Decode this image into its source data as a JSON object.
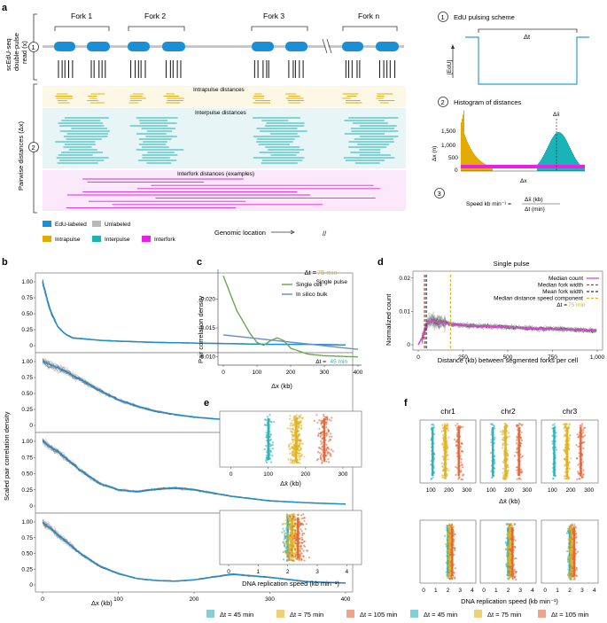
{
  "panels": {
    "a": "a",
    "b": "b",
    "c": "c",
    "d": "d",
    "e": "e",
    "f": "f"
  },
  "panel_a": {
    "forks": [
      "Fork 1",
      "Fork 2",
      "Fork 3",
      "Fork n"
    ],
    "ylabel_top": [
      "scEdU-seq",
      "double-pulse",
      "read (x)"
    ],
    "ylabel_bottom": "Pairwise distances (Δx)",
    "circle_labels": [
      "1",
      "2",
      "3"
    ],
    "band_labels": {
      "intra": "Intrapulse distances",
      "inter": "Interpulse distances",
      "interfork": "Interfork distances (examples)"
    },
    "legend": [
      "EdU-labeled",
      "Unlabeled",
      "Intrapulse",
      "Interpulse",
      "Interfork"
    ],
    "xlabel": "Genomic location",
    "right": {
      "pulse_title": "EdU pulsing scheme",
      "pulse_dt": "Δt",
      "pulse_ylabel": "[EdU]",
      "hist_title": "Histogram of distances",
      "hist_ylabel": "Δx (n)",
      "hist_xlabel": "Δx",
      "hist_mean": "Δx̄",
      "hist_ticks": [
        "1,000",
        "500",
        "0"
      ],
      "hist_ticks_top": "1,500",
      "speed_label": "Speed kb min⁻¹ =",
      "speed_num": "Δx̄ (kb)",
      "speed_den": "Δt (min)"
    }
  },
  "colors": {
    "edu": "#1b8fd6",
    "unlabeled": "#b8b8b8",
    "intra": "#e3aa00",
    "inter": "#1ab3b8",
    "interfork": "#ea1ee5",
    "median": "#e43fd8",
    "y45": "#2bb3bc",
    "y75": "#e3b11c",
    "y105": "#e2673c"
  },
  "panel_b": {
    "titles": [
      "Single pulse",
      "Δt = ",
      "Δt = ",
      "Δt = "
    ],
    "dt_values": [
      "45 min",
      "75 min",
      "105 min"
    ],
    "ylabel": "Scaled pair correlation density",
    "xlabel": "Δx (kb)",
    "yticks": [
      "0",
      "0.25",
      "0.50",
      "0.75",
      "1.00"
    ],
    "xticks": [
      "0",
      "100",
      "200",
      "300",
      "400"
    ]
  },
  "chart_data": [
    {
      "type": "line",
      "title": "Single pulse",
      "x": [
        0,
        10,
        20,
        30,
        40,
        60,
        80,
        100,
        150,
        200,
        250,
        300,
        350,
        400
      ],
      "y": [
        1.0,
        0.55,
        0.3,
        0.18,
        0.12,
        0.1,
        0.08,
        0.07,
        0.05,
        0.04,
        0.03,
        0.02,
        0.02,
        0.01
      ],
      "xlim": [
        0,
        400
      ],
      "ylim": [
        0,
        1
      ]
    },
    {
      "type": "line",
      "title": "Δt = 45 min",
      "x": [
        0,
        25,
        50,
        75,
        100,
        125,
        150,
        175,
        200,
        250,
        300,
        350,
        400
      ],
      "y": [
        1.0,
        0.88,
        0.72,
        0.55,
        0.4,
        0.3,
        0.22,
        0.17,
        0.13,
        0.08,
        0.05,
        0.03,
        0.02
      ],
      "xlim": [
        0,
        400
      ],
      "ylim": [
        0,
        1
      ]
    },
    {
      "type": "line",
      "title": "Δt = 75 min",
      "x": [
        0,
        25,
        50,
        75,
        100,
        125,
        150,
        175,
        200,
        250,
        300,
        350,
        400
      ],
      "y": [
        1.0,
        0.8,
        0.55,
        0.35,
        0.25,
        0.22,
        0.26,
        0.28,
        0.25,
        0.15,
        0.08,
        0.05,
        0.03
      ],
      "xlim": [
        0,
        400
      ],
      "ylim": [
        0,
        1
      ]
    },
    {
      "type": "line",
      "title": "Δt = 105 min",
      "x": [
        0,
        25,
        50,
        75,
        100,
        125,
        150,
        175,
        200,
        250,
        300,
        350,
        400
      ],
      "y": [
        1.0,
        0.75,
        0.5,
        0.3,
        0.18,
        0.1,
        0.07,
        0.06,
        0.08,
        0.17,
        0.12,
        0.05,
        0.03
      ],
      "xlim": [
        0,
        400
      ],
      "ylim": [
        0,
        1
      ]
    },
    {
      "type": "line",
      "title": "Δt = 75 min",
      "xlabel": "Δx (kb)",
      "ylabel": "Pair correlation density",
      "xlim": [
        0,
        400
      ],
      "ylim": [
        0.009,
        0.025
      ],
      "series": [
        {
          "name": "Single cell",
          "x": [
            0,
            20,
            40,
            60,
            80,
            100,
            120,
            140,
            160,
            180,
            200,
            250,
            300,
            350,
            400
          ],
          "y": [
            0.024,
            0.021,
            0.018,
            0.016,
            0.014,
            0.0125,
            0.012,
            0.0128,
            0.0133,
            0.0128,
            0.0115,
            0.0105,
            0.0102,
            0.0101,
            0.01
          ]
        },
        {
          "name": "In silico bulk",
          "x": [
            0,
            400
          ],
          "y": [
            0.0138,
            0.0113
          ]
        }
      ]
    },
    {
      "type": "line",
      "title": "Single pulse",
      "xlabel": "Distance (kb) between segmented forks per cell",
      "ylabel": "Normalized count",
      "xlim": [
        0,
        1000
      ],
      "ylim": [
        0,
        0.021
      ],
      "series": [
        {
          "name": "Median count",
          "x": [
            0,
            30,
            50,
            80,
            100,
            150,
            200,
            300,
            400,
            500,
            600,
            700,
            800,
            900,
            1000
          ],
          "y": [
            0,
            0.003,
            0.0068,
            0.0072,
            0.0068,
            0.0065,
            0.006,
            0.0057,
            0.0055,
            0.0053,
            0.005,
            0.0048,
            0.0047,
            0.0045,
            0.0042
          ]
        }
      ],
      "markers": [
        {
          "name": "Median fork width",
          "x": 35
        },
        {
          "name": "Mean fork width",
          "x": 45
        },
        {
          "name": "Median distance speed component",
          "x": 180
        }
      ],
      "yticks": [
        "0",
        "0.01",
        "0.02"
      ],
      "xticks": [
        "0",
        "250",
        "500",
        "750",
        "1,000"
      ]
    },
    {
      "type": "scatter",
      "xlabel": "Δx̄ (kb)",
      "xticks": [
        "0",
        "100",
        "200",
        "300"
      ],
      "series": [
        {
          "name": "Δt = 45 min",
          "center": 100
        },
        {
          "name": "Δt = 75 min",
          "center": 175
        },
        {
          "name": "Δt = 105 min",
          "center": 250
        }
      ]
    },
    {
      "type": "scatter",
      "xlabel": "DNA replication speed (kb min⁻¹)",
      "xticks": [
        "0",
        "1",
        "2",
        "3",
        "4"
      ],
      "series": [
        {
          "name": "Δt = 45 min",
          "center": 2.0
        },
        {
          "name": "Δt = 75 min",
          "center": 2.15
        },
        {
          "name": "Δt = 105 min",
          "center": 2.35
        }
      ]
    },
    {
      "type": "scatter",
      "titles": [
        "chr1",
        "chr2",
        "chr3"
      ],
      "xlabel": "Δx̄ (kb)",
      "xticks": [
        "100",
        "200",
        "300"
      ],
      "xlabel2": "DNA replication speed (kb min⁻¹)",
      "xticks2": [
        "0",
        "1",
        "2",
        "3",
        "4"
      ]
    }
  ],
  "panel_c": {
    "title_prefix": "Δt = ",
    "title_value": "75 min",
    "legend": [
      "Single cell",
      "In silico bulk"
    ],
    "yticks": [
      "0.010",
      "0.015",
      "0.020"
    ],
    "xticks": [
      "0",
      "100",
      "200",
      "300",
      "400"
    ],
    "ylabel": "Pair correlation density",
    "xlabel": "Δx (kb)"
  },
  "panel_d": {
    "title": "Single pulse",
    "legend": [
      "Median count",
      "Median fork width",
      "Mean fork width",
      "Median distance speed component",
      "Δt = "
    ],
    "legend_dt": "75 min",
    "ylabel": "Normalized count",
    "xlabel": "Distance (kb) between segmented forks per cell",
    "yticks": [
      "0",
      "0.01",
      "0.02"
    ],
    "xticks": [
      "0",
      "250",
      "500",
      "750",
      "1,000"
    ]
  },
  "panel_e": {
    "xlabel1": "Δx̄ (kb)",
    "xticks1": [
      "0",
      "100",
      "200",
      "300"
    ],
    "xlabel2": "DNA replication speed (kb min⁻¹)",
    "xticks2": [
      "0",
      "1",
      "2",
      "3",
      "4"
    ]
  },
  "panel_f": {
    "titles": [
      "chr1",
      "chr2",
      "chr3"
    ],
    "xticks1": [
      "100",
      "200",
      "300"
    ],
    "xlabel1": "Δx̄ (kb)",
    "xticks2": [
      "0",
      "1",
      "2",
      "3",
      "4"
    ],
    "xlabel2": "DNA replication speed (kb min⁻¹)"
  },
  "bottom_legend": [
    "Δt = 45 min",
    "Δt = 75 min",
    "Δt = 105 min"
  ]
}
